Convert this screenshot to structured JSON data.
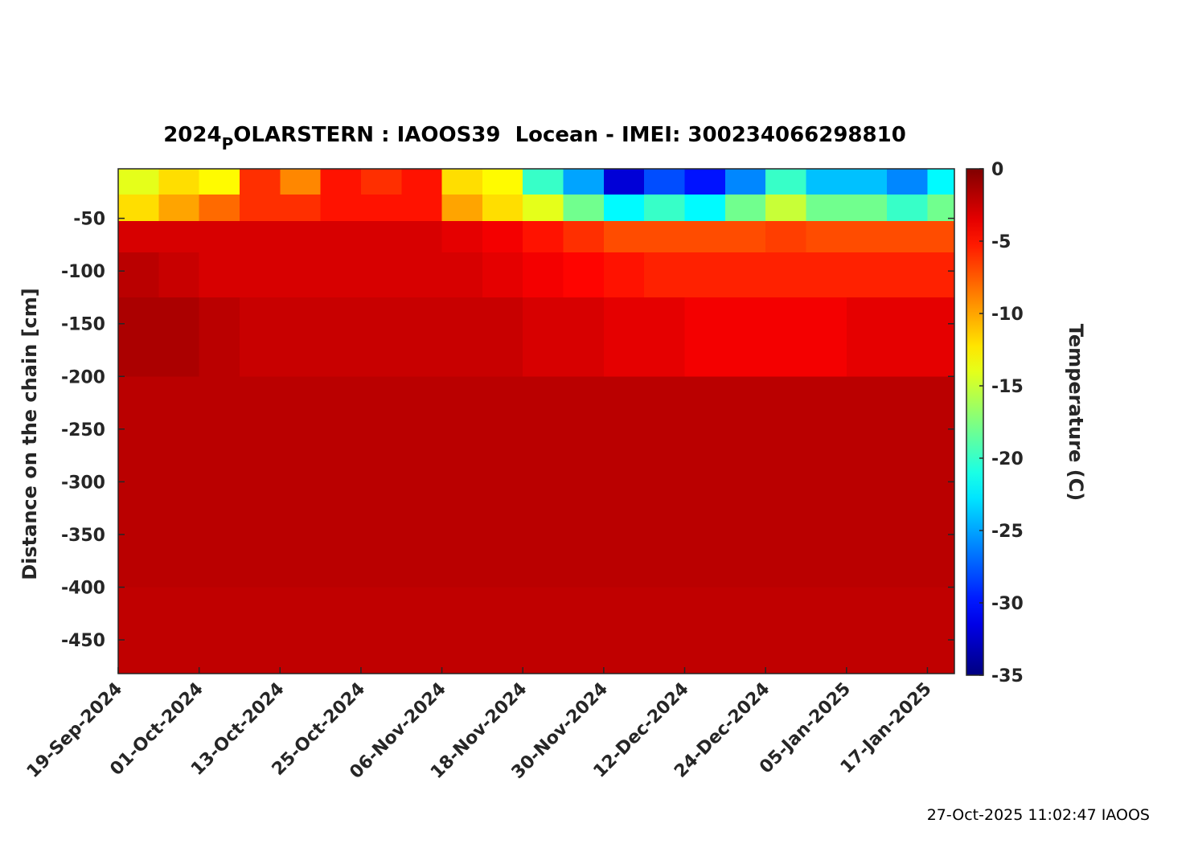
{
  "chart_data": {
    "type": "heatmap",
    "title": "2024POLARSTERN : IAOOS39  Locean - IMEI: 300234066298810",
    "y_label": "Distance on the chain [cm]",
    "colorbar_label": "Temperature (C)",
    "footer": "27-Oct-2025 11:02:47 IAOOS",
    "colormap": "jet",
    "x": [
      "2024-09-19",
      "2024-09-25",
      "2024-10-01",
      "2024-10-07",
      "2024-10-13",
      "2024-10-19",
      "2024-10-25",
      "2024-10-31",
      "2024-11-06",
      "2024-11-12",
      "2024-11-18",
      "2024-11-24",
      "2024-11-30",
      "2024-12-06",
      "2024-12-12",
      "2024-12-18",
      "2024-12-24",
      "2024-12-30",
      "2025-01-05",
      "2025-01-11",
      "2025-01-17"
    ],
    "y": [
      -15,
      -40,
      -65,
      -100,
      -150,
      -250,
      -350,
      -450
    ],
    "values": [
      [
        -14,
        -12,
        -13,
        -6,
        -9,
        -5,
        -6,
        -5,
        -12,
        -13,
        -20,
        -25,
        -32,
        -28,
        -30,
        -26,
        -20,
        -24,
        -24,
        -26,
        -22
      ],
      [
        -12,
        -10,
        -8,
        -6,
        -6,
        -5,
        -5,
        -5,
        -10,
        -12,
        -14,
        -18,
        -22,
        -20,
        -22,
        -18,
        -15,
        -18,
        -18,
        -20,
        -18
      ],
      [
        -3,
        -3,
        -3,
        -3,
        -3,
        -3,
        -3,
        -3,
        -3.5,
        -4,
        -5,
        -6,
        -7,
        -7,
        -7,
        -7,
        -6.5,
        -7,
        -7,
        -7,
        -7
      ],
      [
        -2,
        -2.5,
        -3,
        -3,
        -3,
        -3,
        -3,
        -3,
        -3,
        -3.5,
        -4,
        -4.5,
        -5,
        -5.5,
        -5.5,
        -5.5,
        -5.5,
        -5.5,
        -5.5,
        -5.5,
        -5.5
      ],
      [
        -1.5,
        -1.5,
        -2,
        -2.5,
        -2.5,
        -2.5,
        -2.5,
        -2.5,
        -2.5,
        -2.5,
        -3,
        -3,
        -3.5,
        -3.5,
        -4,
        -4,
        -4,
        -4,
        -3.5,
        -3.5,
        -3.5
      ],
      [
        -2,
        -2,
        -2,
        -2,
        -2,
        -2,
        -2,
        -2,
        -2,
        -2,
        -2,
        -2,
        -2,
        -2,
        -2,
        -2,
        -2,
        -2,
        -2,
        -2,
        -2
      ],
      [
        -2,
        -2,
        -2,
        -2,
        -2,
        -2,
        -2,
        -2,
        -2,
        -2,
        -2,
        -2,
        -2,
        -2,
        -2,
        -2,
        -2,
        -2,
        -2,
        -2,
        -2
      ],
      [
        -2.2,
        -2.2,
        -2.2,
        -2.2,
        -2.2,
        -2.2,
        -2.2,
        -2.2,
        -2.2,
        -2.2,
        -2.2,
        -2.2,
        -2.2,
        -2.2,
        -2.2,
        -2.2,
        -2.2,
        -2.2,
        -2.2,
        -2.2,
        -2.2
      ]
    ],
    "xlim": [
      "2024-09-19",
      "2025-01-21"
    ],
    "ylim": [
      -482,
      -3
    ],
    "clim": [
      -35,
      0
    ],
    "xticks": [
      {
        "value": "2024-09-19",
        "label": "19-Sep-2024"
      },
      {
        "value": "2024-10-01",
        "label": "01-Oct-2024"
      },
      {
        "value": "2024-10-13",
        "label": "13-Oct-2024"
      },
      {
        "value": "2024-10-25",
        "label": "25-Oct-2024"
      },
      {
        "value": "2024-11-06",
        "label": "06-Nov-2024"
      },
      {
        "value": "2024-11-18",
        "label": "18-Nov-2024"
      },
      {
        "value": "2024-11-30",
        "label": "30-Nov-2024"
      },
      {
        "value": "2024-12-12",
        "label": "12-Dec-2024"
      },
      {
        "value": "2024-12-24",
        "label": "24-Dec-2024"
      },
      {
        "value": "2025-01-05",
        "label": "05-Jan-2025"
      },
      {
        "value": "2025-01-17",
        "label": "17-Jan-2025"
      }
    ],
    "yticks": [
      -50,
      -100,
      -150,
      -200,
      -250,
      -300,
      -350,
      -400,
      -450
    ],
    "cticks": [
      0,
      -5,
      -10,
      -15,
      -20,
      -25,
      -30,
      -35
    ]
  }
}
